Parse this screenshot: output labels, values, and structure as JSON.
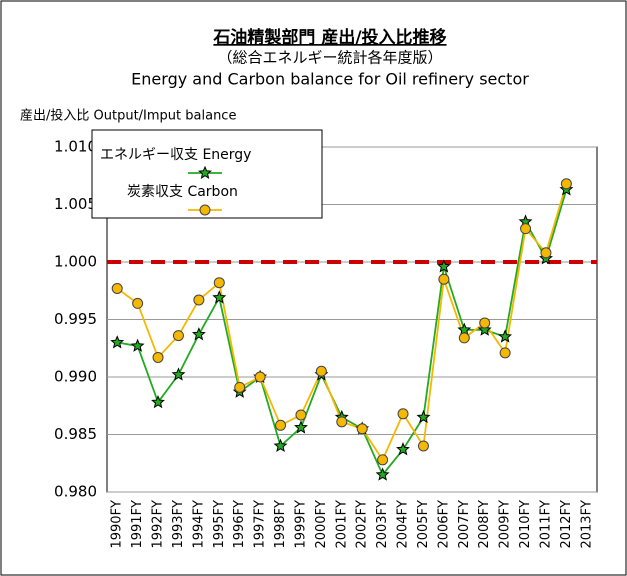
{
  "chart_data": {
    "type": "line",
    "title": "石油精製部門 産出/投入比推移",
    "subtitle": "（総合エネルギー統計各年度版）",
    "subtitle_en": "Energy and Carbon balance for Oil refinery sector",
    "y_label": "産出/投入比  Output/Imput balance",
    "categories": [
      "1990FY",
      "1991FY",
      "1992FY",
      "1993FY",
      "1994FY",
      "1995FY",
      "1996FY",
      "1997FY",
      "1998FY",
      "1999FY",
      "2000FY",
      "2001FY",
      "2002FY",
      "2003FY",
      "2004FY",
      "2005FY",
      "2006FY",
      "2007FY",
      "2008FY",
      "2009FY",
      "2010FY",
      "2011FY",
      "2012FY",
      "2013FY"
    ],
    "series": [
      {
        "name": "エネルギー収支  Energy",
        "color": "#22aa22",
        "marker": "star",
        "values": [
          0.993,
          0.9927,
          0.9878,
          0.9902,
          0.9937,
          0.9969,
          0.9887,
          0.99,
          0.984,
          0.9856,
          0.9902,
          0.9865,
          0.9855,
          0.9815,
          0.9837,
          0.9865,
          0.9996,
          0.9941,
          0.9941,
          0.9935,
          1.0035,
          1.0003,
          1.0063,
          null
        ]
      },
      {
        "name": "炭素収支  Carbon",
        "color": "#f5b800",
        "marker": "circle",
        "values": [
          0.9977,
          0.9964,
          0.9917,
          0.9936,
          0.9967,
          0.9982,
          0.9891,
          0.99,
          0.9858,
          0.9867,
          0.9905,
          0.9861,
          0.9855,
          0.9828,
          0.9868,
          0.984,
          0.9985,
          0.9934,
          0.9947,
          0.9921,
          1.0029,
          1.0008,
          1.0068,
          null
        ]
      }
    ],
    "reference_line": 1.0,
    "reference_color": "#cc0000",
    "ylim": [
      0.98,
      1.01
    ],
    "yticks": [
      {
        "value": 0.98,
        "label": "0.980"
      },
      {
        "value": 0.985,
        "label": "0.985"
      },
      {
        "value": 0.99,
        "label": "0.990"
      },
      {
        "value": 0.995,
        "label": "0.995"
      },
      {
        "value": 1.0,
        "label": "1.000"
      },
      {
        "value": 1.005,
        "label": "1.005"
      },
      {
        "value": 1.01,
        "label": "1.010"
      }
    ],
    "grid": true
  }
}
